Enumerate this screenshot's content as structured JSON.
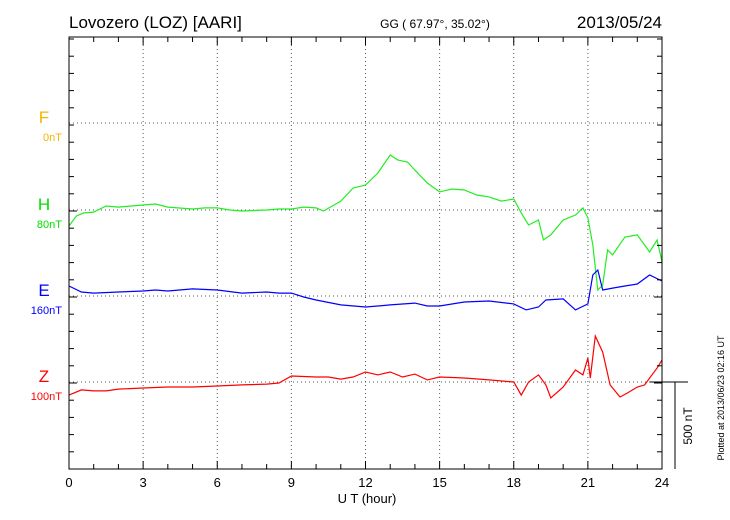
{
  "chart_data": {
    "type": "line",
    "title": "Lovozero (LOZ)  [AARI]",
    "coords": "GG ( 67.97°,  35.02°)",
    "date": "2013/05/24",
    "xlabel": "U T (hour)",
    "xlim": [
      0,
      24
    ],
    "xticks": [
      "0",
      "3",
      "6",
      "9",
      "12",
      "15",
      "18",
      "21",
      "24"
    ],
    "scale_bar_label": "500 nT",
    "scale_bar_nT": 500,
    "plotted_note": "Plotted at 2013/06/23 02:16 UT",
    "grid": true,
    "components": [
      {
        "name": "F",
        "offset": "0nT",
        "color": "#f5b400",
        "trace_color": "#f5b400",
        "x": [],
        "y": []
      },
      {
        "name": "H",
        "offset": "80nT",
        "color": "#00e000",
        "trace_color": "#22ee22",
        "x": [
          0,
          0.3,
          0.6,
          1,
          1.5,
          2,
          3,
          3.5,
          4,
          5,
          5.5,
          6,
          6.5,
          7,
          8,
          8.5,
          9,
          9.5,
          10,
          10.3,
          11,
          11.5,
          12,
          12.5,
          13,
          13.3,
          13.7,
          14,
          14.5,
          15,
          15.5,
          16,
          16.5,
          17,
          17.5,
          18,
          18.3,
          18.6,
          19,
          19.2,
          19.5,
          20,
          20.5,
          20.8,
          21,
          21.2,
          21.4,
          21.6,
          21.8,
          22,
          22.5,
          23,
          23.5,
          23.8,
          24
        ],
        "y": [
          -93,
          -35,
          -17,
          -12,
          23,
          17,
          29,
          35,
          17,
          6,
          12,
          12,
          0,
          -6,
          0,
          6,
          6,
          17,
          12,
          -6,
          52,
          128,
          145,
          215,
          320,
          291,
          279,
          232,
          157,
          105,
          122,
          116,
          87,
          76,
          52,
          64,
          -17,
          -87,
          -58,
          -174,
          -145,
          -58,
          -29,
          12,
          -46,
          -203,
          -465,
          -436,
          -232,
          -261,
          -157,
          -145,
          -244,
          -174,
          -302
        ]
      },
      {
        "name": "E",
        "offset": "160nT",
        "color": "#0000ff",
        "trace_color": "#0000ff",
        "x": [
          0,
          0.5,
          1,
          2,
          3,
          3.5,
          4,
          5,
          6,
          7,
          8,
          8.5,
          9,
          9.5,
          10,
          11,
          12,
          12.5,
          13,
          14,
          14.5,
          15,
          16,
          17,
          18,
          18.5,
          19,
          19.3,
          20,
          20.5,
          21,
          21.2,
          21.4,
          21.6,
          22,
          22.5,
          23,
          23.5,
          24
        ],
        "y": [
          58,
          23,
          17,
          23,
          29,
          35,
          29,
          41,
          35,
          17,
          23,
          17,
          17,
          -6,
          -23,
          -52,
          -64,
          -58,
          -52,
          -41,
          -58,
          -58,
          -35,
          -29,
          -46,
          -81,
          -64,
          -23,
          -17,
          -81,
          -46,
          122,
          151,
          35,
          46,
          58,
          70,
          122,
          87
        ]
      },
      {
        "name": "Z",
        "offset": "100nT",
        "color": "#ff0000",
        "trace_color": "#ff0000",
        "x": [
          0,
          0.5,
          1,
          1.5,
          2,
          3,
          4,
          5,
          6,
          7,
          8,
          8.5,
          9,
          10,
          10.5,
          11,
          11.5,
          12,
          12.5,
          13,
          13.5,
          14,
          14.5,
          15,
          16,
          17,
          18,
          18.3,
          18.6,
          19,
          19.3,
          19.5,
          20,
          20.5,
          20.8,
          21,
          21.1,
          21.3,
          21.6,
          21.9,
          22.3,
          22.6,
          23,
          23.3,
          23.5,
          23.8,
          24
        ],
        "y": [
          -76,
          -46,
          -52,
          -52,
          -41,
          -35,
          -29,
          -29,
          -23,
          -17,
          -12,
          -6,
          35,
          29,
          29,
          17,
          29,
          58,
          41,
          58,
          29,
          46,
          12,
          29,
          23,
          12,
          0,
          -76,
          0,
          41,
          -17,
          -93,
          -29,
          70,
          41,
          139,
          23,
          267,
          174,
          -17,
          -87,
          -64,
          -29,
          -17,
          23,
          81,
          128
        ]
      }
    ]
  }
}
